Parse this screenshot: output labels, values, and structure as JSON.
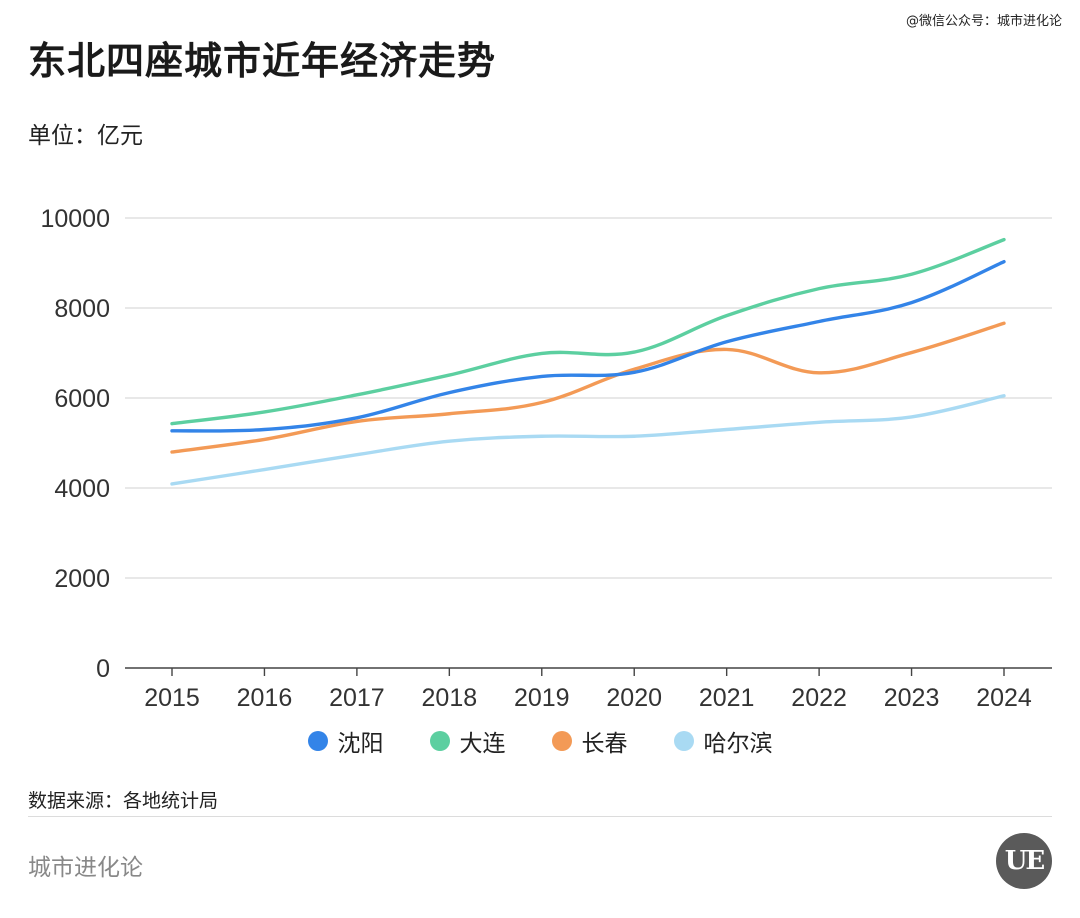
{
  "credit": "@微信公众号：城市进化论",
  "footer": {
    "source": "数据来源：各地统计局",
    "brand": "城市进化论"
  },
  "chart_data": {
    "type": "line",
    "title": "东北四座城市近年经济走势",
    "ylabel": "单位：亿元",
    "xlabel": "",
    "ylim": [
      0,
      10000
    ],
    "yticks": [
      "0",
      "2000",
      "4000",
      "6000",
      "8000",
      "10000"
    ],
    "x": [
      "2015",
      "2016",
      "2017",
      "2018",
      "2019",
      "2020",
      "2021",
      "2022",
      "2023",
      "2024"
    ],
    "grid": true,
    "legend_position": "bottom",
    "series": [
      {
        "name": "沈阳",
        "color": "#3384e8",
        "values": [
          5270,
          5300,
          5560,
          6120,
          6480,
          6570,
          7250,
          7700,
          8120,
          9030
        ]
      },
      {
        "name": "大连",
        "color": "#5ccfa0",
        "values": [
          5430,
          5690,
          6070,
          6510,
          6990,
          7020,
          7830,
          8430,
          8750,
          9520
        ]
      },
      {
        "name": "长春",
        "color": "#f39a56",
        "values": [
          4800,
          5080,
          5480,
          5650,
          5900,
          6640,
          7080,
          6560,
          7010,
          7660
        ]
      },
      {
        "name": "哈尔滨",
        "color": "#a9daf3",
        "values": [
          4090,
          4410,
          4740,
          5040,
          5150,
          5150,
          5300,
          5460,
          5580,
          6050
        ]
      }
    ]
  }
}
